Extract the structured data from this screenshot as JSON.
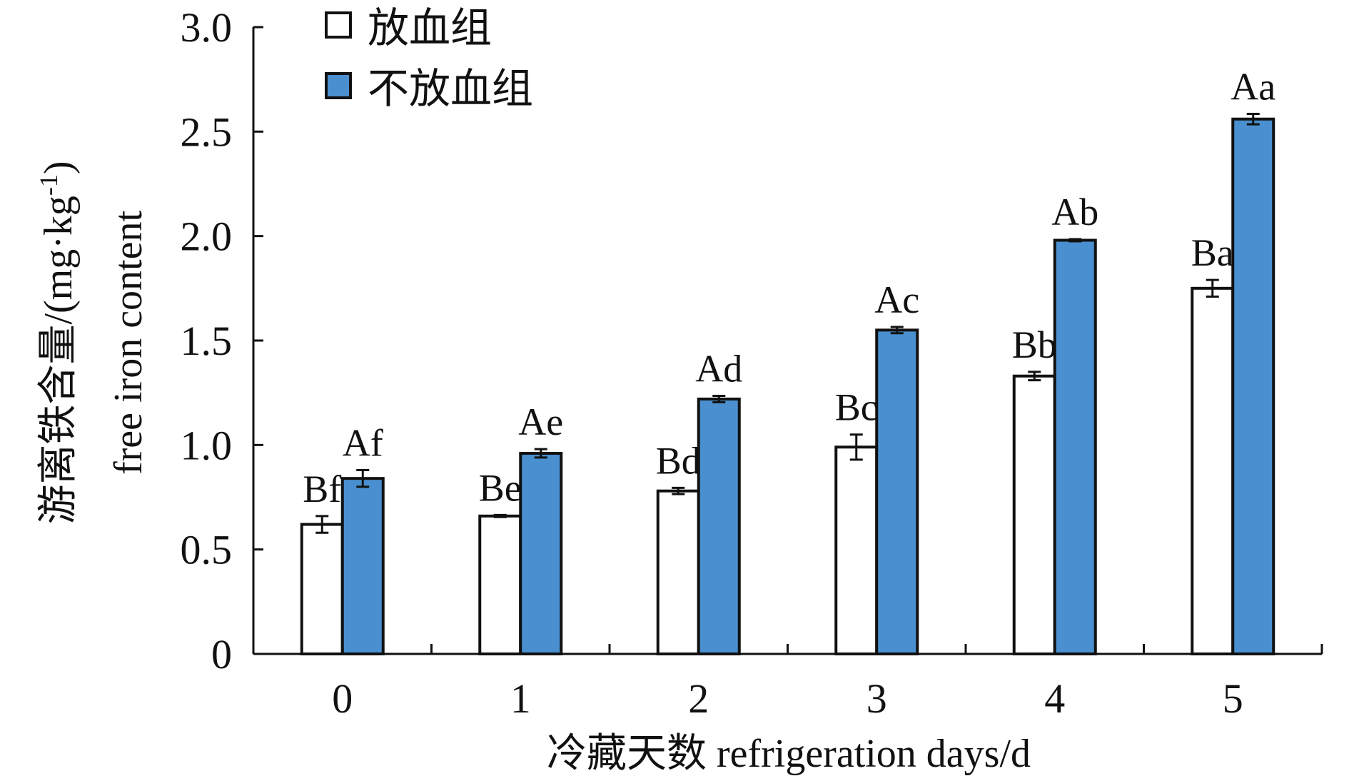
{
  "chart_data": {
    "type": "bar",
    "categories": [
      "0",
      "1",
      "2",
      "3",
      "4",
      "5"
    ],
    "xlabel": "冷藏天数 refrigeration days/d",
    "ylabel_line1": "游离铁含量/(mg·kg",
    "ylabel_sup": "-1",
    "ylabel_line1_close": ")",
    "ylabel_line2": "free iron content",
    "ylim": [
      0,
      3.0
    ],
    "yticks": [
      {
        "value": 0,
        "label": "0"
      },
      {
        "value": 0.5,
        "label": "0.5"
      },
      {
        "value": 1.0,
        "label": "1.0"
      },
      {
        "value": 1.5,
        "label": "1.5"
      },
      {
        "value": 2.0,
        "label": "2.0"
      },
      {
        "value": 2.5,
        "label": "2.5"
      },
      {
        "value": 3.0,
        "label": "3.0"
      }
    ],
    "legend_position": "top-left",
    "series": [
      {
        "name": "放血组",
        "color": "#ffffff",
        "values": [
          0.62,
          0.66,
          0.78,
          0.99,
          1.33,
          1.75
        ],
        "errors": [
          0.04,
          0.005,
          0.015,
          0.06,
          0.02,
          0.04
        ],
        "labels": [
          "Bf",
          "Be",
          "Bd",
          "Bc",
          "Bb",
          "Ba"
        ]
      },
      {
        "name": "不放血组",
        "color": "#4a90d0",
        "values": [
          0.84,
          0.96,
          1.22,
          1.55,
          1.98,
          2.56
        ],
        "errors": [
          0.04,
          0.02,
          0.015,
          0.015,
          0.005,
          0.025
        ],
        "labels": [
          "Af",
          "Ae",
          "Ad",
          "Ac",
          "Ab",
          "Aa"
        ]
      }
    ]
  }
}
